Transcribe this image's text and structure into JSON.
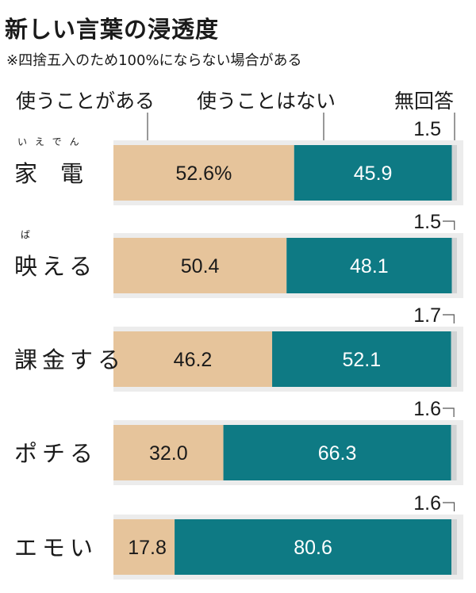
{
  "title": "新しい言葉の浸透度",
  "note": "※四捨五入のため100%にならない場合がある",
  "legend": {
    "use": "使うことがある",
    "not_use": "使うことはない",
    "no_answer": "無回答"
  },
  "colors": {
    "use": "#e6c49b",
    "not_use": "#0e7a84",
    "no_answer": "#d0d3d4",
    "lane": "#ececec"
  },
  "chart_data": {
    "type": "bar",
    "stacked": true,
    "orientation": "horizontal",
    "title": "新しい言葉の浸透度",
    "categories": [
      "家電",
      "映える",
      "課金する",
      "ポチる",
      "エモい"
    ],
    "category_labels": [
      {
        "text": "家　電",
        "ruby": "いえでん"
      },
      {
        "text": "映える",
        "ruby": "ば"
      },
      {
        "text": "課金する",
        "ruby": ""
      },
      {
        "text": "ポチる",
        "ruby": ""
      },
      {
        "text": "エモい",
        "ruby": ""
      }
    ],
    "series": [
      {
        "name": "使うことがある",
        "values": [
          52.6,
          50.4,
          46.2,
          32.0,
          17.8
        ],
        "labels": [
          "52.6%",
          "50.4",
          "46.2",
          "32.0",
          "17.8"
        ]
      },
      {
        "name": "使うことはない",
        "values": [
          45.9,
          48.1,
          52.1,
          66.3,
          80.6
        ],
        "labels": [
          "45.9",
          "48.1",
          "52.1",
          "66.3",
          "80.6"
        ]
      },
      {
        "name": "無回答",
        "values": [
          1.5,
          1.5,
          1.7,
          1.6,
          1.6
        ],
        "labels": [
          "1.5",
          "1.5",
          "1.7",
          "1.6",
          "1.6"
        ]
      }
    ],
    "xlim": [
      0,
      100
    ],
    "grid": false,
    "legend_position": "top"
  }
}
